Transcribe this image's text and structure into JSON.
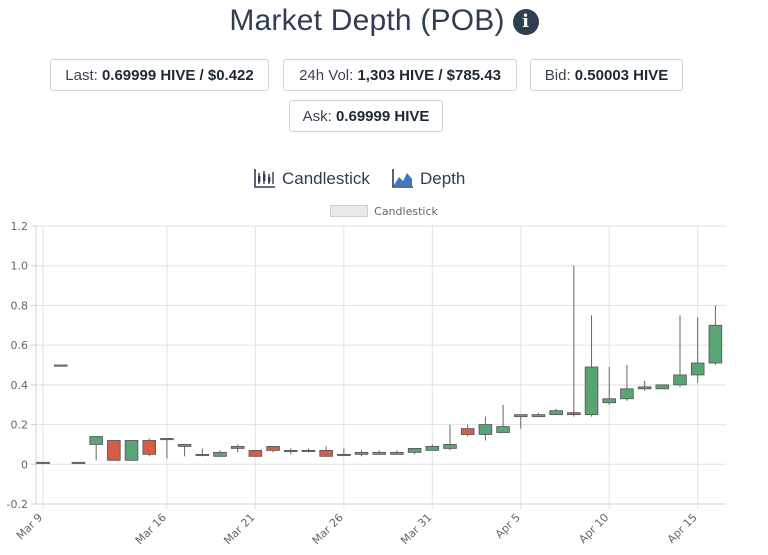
{
  "header": {
    "title": "Market Depth (POB)",
    "info_icon": "info-circle-icon"
  },
  "stats": {
    "last_label": "Last: ",
    "last_value": "0.69999 HIVE / $0.422",
    "vol_label": "24h Vol: ",
    "vol_value": "1,303 HIVE / $785.43",
    "bid_label": "Bid: ",
    "bid_value": "0.50003 HIVE",
    "ask_label": "Ask: ",
    "ask_value": "0.69999 HIVE"
  },
  "toggles": {
    "candlestick_label": "Candlestick",
    "candlestick_icon": "candlestick-chart-icon",
    "depth_label": "Depth",
    "depth_icon": "area-chart-icon"
  },
  "chart_data": {
    "type": "candlestick",
    "legend": [
      "Candlestick"
    ],
    "ylim": [
      -0.2,
      1.2
    ],
    "yticks": [
      -0.2,
      0,
      0.2,
      0.4,
      0.6,
      0.8,
      1.0,
      1.2
    ],
    "ytick_labels": [
      "-0.2",
      "0",
      "0.2",
      "0.4",
      "0.6",
      "0.8",
      "1.0",
      "1.2"
    ],
    "x_start": "Mar 9",
    "x_ticks": [
      {
        "day": 0,
        "label": "Mar 9"
      },
      {
        "day": 7,
        "label": "Mar 16"
      },
      {
        "day": 12,
        "label": "Mar 21"
      },
      {
        "day": 17,
        "label": "Mar 26"
      },
      {
        "day": 22,
        "label": "Mar 31"
      },
      {
        "day": 27,
        "label": "Apr 5"
      },
      {
        "day": 32,
        "label": "Apr 10"
      },
      {
        "day": 37,
        "label": "Apr 15"
      }
    ],
    "x_range_days": [
      -0.4,
      38.6
    ],
    "up_color": "#5aa374",
    "down_color": "#d65c4a",
    "candles": [
      {
        "day": 0,
        "o": 0.01,
        "h": 0.01,
        "l": 0.01,
        "c": 0.01
      },
      {
        "day": 1,
        "o": 0.5,
        "h": 0.5,
        "l": 0.5,
        "c": 0.5
      },
      {
        "day": 2,
        "o": 0.01,
        "h": 0.01,
        "l": 0.01,
        "c": 0.01
      },
      {
        "day": 3,
        "o": 0.1,
        "h": 0.14,
        "l": 0.02,
        "c": 0.14
      },
      {
        "day": 4,
        "o": 0.12,
        "h": 0.12,
        "l": 0.02,
        "c": 0.02
      },
      {
        "day": 5,
        "o": 0.02,
        "h": 0.12,
        "l": 0.02,
        "c": 0.12
      },
      {
        "day": 6,
        "o": 0.12,
        "h": 0.13,
        "l": 0.04,
        "c": 0.05
      },
      {
        "day": 7,
        "o": 0.13,
        "h": 0.13,
        "l": 0.03,
        "c": 0.13
      },
      {
        "day": 8,
        "o": 0.09,
        "h": 0.1,
        "l": 0.04,
        "c": 0.1
      },
      {
        "day": 9,
        "o": 0.05,
        "h": 0.08,
        "l": 0.04,
        "c": 0.05
      },
      {
        "day": 10,
        "o": 0.04,
        "h": 0.07,
        "l": 0.04,
        "c": 0.06
      },
      {
        "day": 11,
        "o": 0.08,
        "h": 0.1,
        "l": 0.06,
        "c": 0.09
      },
      {
        "day": 12,
        "o": 0.07,
        "h": 0.07,
        "l": 0.04,
        "c": 0.04
      },
      {
        "day": 13,
        "o": 0.09,
        "h": 0.09,
        "l": 0.06,
        "c": 0.07
      },
      {
        "day": 14,
        "o": 0.07,
        "h": 0.08,
        "l": 0.05,
        "c": 0.07
      },
      {
        "day": 15,
        "o": 0.07,
        "h": 0.08,
        "l": 0.06,
        "c": 0.07
      },
      {
        "day": 16,
        "o": 0.07,
        "h": 0.09,
        "l": 0.04,
        "c": 0.04
      },
      {
        "day": 17,
        "o": 0.05,
        "h": 0.08,
        "l": 0.04,
        "c": 0.05
      },
      {
        "day": 18,
        "o": 0.05,
        "h": 0.07,
        "l": 0.04,
        "c": 0.06
      },
      {
        "day": 19,
        "o": 0.05,
        "h": 0.07,
        "l": 0.05,
        "c": 0.06
      },
      {
        "day": 20,
        "o": 0.05,
        "h": 0.07,
        "l": 0.05,
        "c": 0.06
      },
      {
        "day": 21,
        "o": 0.06,
        "h": 0.07,
        "l": 0.05,
        "c": 0.08
      },
      {
        "day": 22,
        "o": 0.07,
        "h": 0.1,
        "l": 0.07,
        "c": 0.09
      },
      {
        "day": 23,
        "o": 0.08,
        "h": 0.2,
        "l": 0.07,
        "c": 0.1
      },
      {
        "day": 24,
        "o": 0.18,
        "h": 0.2,
        "l": 0.14,
        "c": 0.15
      },
      {
        "day": 25,
        "o": 0.15,
        "h": 0.24,
        "l": 0.12,
        "c": 0.2
      },
      {
        "day": 26,
        "o": 0.16,
        "h": 0.3,
        "l": 0.16,
        "c": 0.19
      },
      {
        "day": 27,
        "o": 0.24,
        "h": 0.25,
        "l": 0.18,
        "c": 0.25
      },
      {
        "day": 28,
        "o": 0.24,
        "h": 0.26,
        "l": 0.24,
        "c": 0.25
      },
      {
        "day": 29,
        "o": 0.25,
        "h": 0.28,
        "l": 0.25,
        "c": 0.27
      },
      {
        "day": 30,
        "o": 0.26,
        "h": 1.0,
        "l": 0.24,
        "c": 0.25
      },
      {
        "day": 31,
        "o": 0.25,
        "h": 0.75,
        "l": 0.24,
        "c": 0.49
      },
      {
        "day": 32,
        "o": 0.31,
        "h": 0.49,
        "l": 0.3,
        "c": 0.33
      },
      {
        "day": 33,
        "o": 0.33,
        "h": 0.5,
        "l": 0.32,
        "c": 0.38
      },
      {
        "day": 34,
        "o": 0.38,
        "h": 0.42,
        "l": 0.37,
        "c": 0.39
      },
      {
        "day": 35,
        "o": 0.38,
        "h": 0.4,
        "l": 0.38,
        "c": 0.4
      },
      {
        "day": 36,
        "o": 0.4,
        "h": 0.75,
        "l": 0.39,
        "c": 0.45
      },
      {
        "day": 37,
        "o": 0.45,
        "h": 0.74,
        "l": 0.41,
        "c": 0.51
      },
      {
        "day": 38,
        "o": 0.51,
        "h": 0.8,
        "l": 0.5,
        "c": 0.7
      }
    ]
  }
}
